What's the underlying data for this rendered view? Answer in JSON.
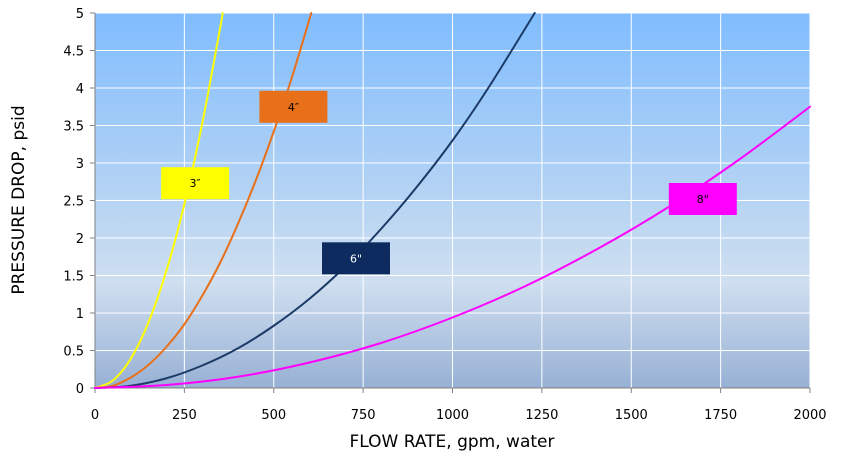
{
  "chart_data": {
    "type": "line",
    "xlabel": "FLOW RATE, gpm, water",
    "ylabel": "PRESSURE DROP, psid",
    "xlim": [
      0,
      2000
    ],
    "ylim": [
      0,
      5
    ],
    "x_ticks": [
      "0",
      "250",
      "500",
      "750",
      "1000",
      "1250",
      "1500",
      "1750",
      "2000"
    ],
    "y_ticks": [
      "0",
      "0.5",
      "1",
      "1.5",
      "2",
      "2.5",
      "3",
      "3.5",
      "4",
      "4.5",
      "5"
    ],
    "grid": true,
    "series": [
      {
        "name": "3″",
        "color": "#ffff00",
        "label_color": "#ffff00",
        "label_text_color": "#000000",
        "label_at": [
          280,
          2.73
        ],
        "x": [
          0,
          50,
          100,
          150,
          200,
          250,
          300,
          350,
          357
        ],
        "y": [
          0,
          0.1,
          0.39,
          0.88,
          1.57,
          2.45,
          3.53,
          4.8,
          5.0
        ]
      },
      {
        "name": "4″",
        "color": "#e8701a",
        "label_color": "#e8701a",
        "label_text_color": "#000000",
        "label_at": [
          555,
          3.75
        ],
        "x": [
          0,
          50,
          100,
          150,
          200,
          250,
          300,
          350,
          400,
          450,
          500,
          550,
          605
        ],
        "y": [
          0,
          0.03,
          0.14,
          0.31,
          0.55,
          0.85,
          1.23,
          1.67,
          2.19,
          2.77,
          3.42,
          4.13,
          5.0
        ]
      },
      {
        "name": "6\"",
        "color": "#1b3a66",
        "label_color": "#0d2b5e",
        "label_text_color": "#ffffff",
        "label_at": [
          730,
          1.73
        ],
        "x": [
          0,
          100,
          200,
          300,
          400,
          500,
          600,
          700,
          800,
          900,
          1000,
          1100,
          1230
        ],
        "y": [
          0,
          0.03,
          0.13,
          0.3,
          0.53,
          0.83,
          1.19,
          1.62,
          2.12,
          2.68,
          3.3,
          4.0,
          5.0
        ]
      },
      {
        "name": "8\"",
        "color": "#ff00ff",
        "label_color": "#ff00ff",
        "label_text_color": "#000000",
        "label_at": [
          1700,
          2.52
        ],
        "x": [
          0,
          200,
          400,
          600,
          800,
          1000,
          1200,
          1400,
          1600,
          1800,
          2000
        ],
        "y": [
          0,
          0.04,
          0.15,
          0.34,
          0.6,
          0.94,
          1.35,
          1.84,
          2.4,
          3.04,
          3.75
        ]
      }
    ]
  },
  "colors": {
    "plot_bg_top": "#80bdff",
    "plot_bg_bottom": "#9cb3d6",
    "plot_bg_mid": "#c9dcf0",
    "gridline": "#ffffff",
    "axis": "#808080"
  }
}
